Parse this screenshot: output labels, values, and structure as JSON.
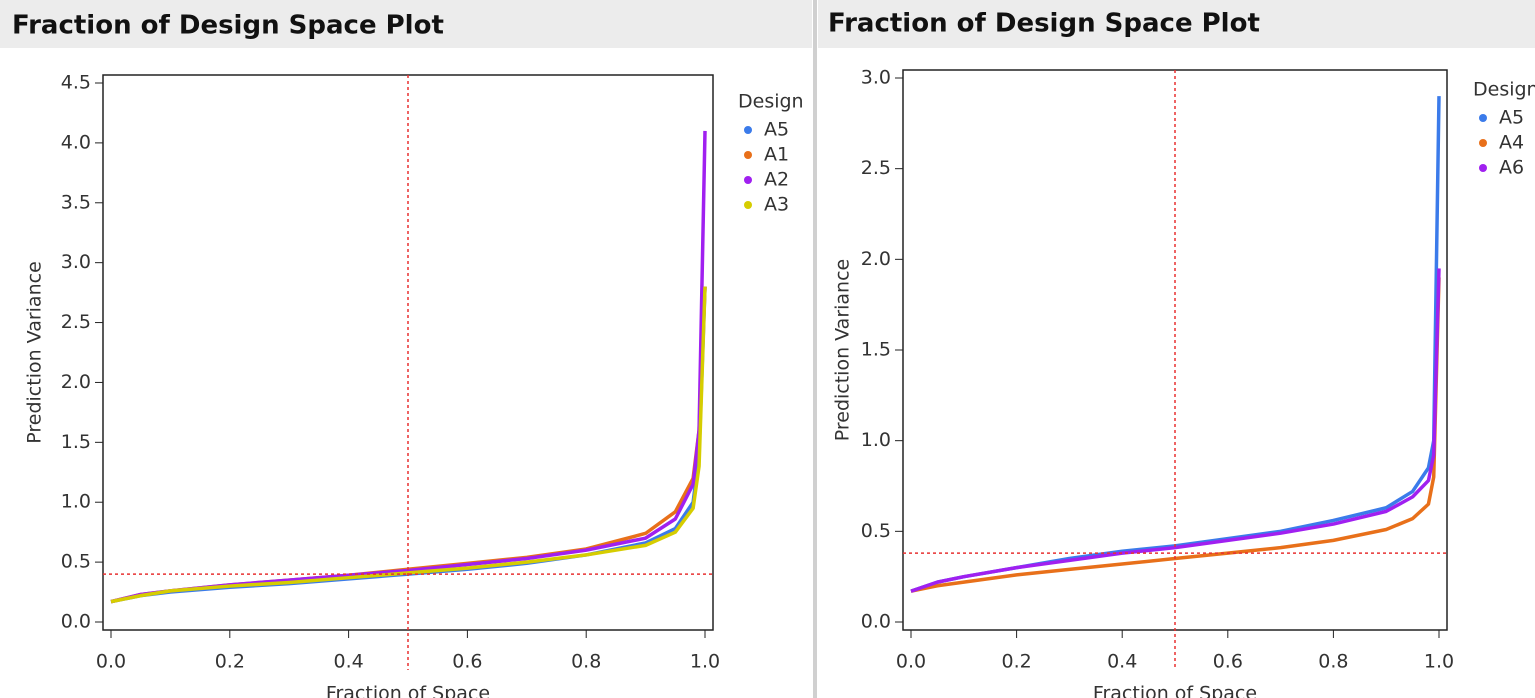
{
  "chart_data": [
    {
      "type": "line",
      "title": "Fraction of Design Space Plot",
      "x_label": "Fraction of Space",
      "y_label": "Prediction Variance",
      "legend_title": "Design",
      "legend": "right",
      "x": [
        0,
        0.05,
        0.1,
        0.2,
        0.3,
        0.4,
        0.5,
        0.6,
        0.7,
        0.8,
        0.9,
        0.95,
        0.98,
        0.99,
        1.0
      ],
      "series": [
        {
          "name": "A5",
          "color": "#3b7bea",
          "values": [
            0.17,
            0.22,
            0.25,
            0.29,
            0.32,
            0.36,
            0.4,
            0.44,
            0.49,
            0.56,
            0.66,
            0.78,
            1.0,
            1.4,
            2.8
          ]
        },
        {
          "name": "A1",
          "color": "#e8701a",
          "values": [
            0.17,
            0.23,
            0.26,
            0.31,
            0.35,
            0.39,
            0.44,
            0.49,
            0.54,
            0.61,
            0.74,
            0.92,
            1.2,
            1.6,
            2.8
          ]
        },
        {
          "name": "A2",
          "color": "#a020f0",
          "values": [
            0.17,
            0.23,
            0.26,
            0.31,
            0.35,
            0.39,
            0.43,
            0.48,
            0.53,
            0.6,
            0.7,
            0.86,
            1.15,
            1.6,
            4.1
          ]
        },
        {
          "name": "A3",
          "color": "#d6cd00",
          "values": [
            0.17,
            0.22,
            0.26,
            0.3,
            0.33,
            0.37,
            0.41,
            0.45,
            0.5,
            0.56,
            0.64,
            0.75,
            0.95,
            1.3,
            2.8
          ]
        }
      ],
      "xlim": [
        0,
        1
      ],
      "ylim": [
        0,
        4.5
      ],
      "xticks": [
        {
          "value": 0,
          "label": "0.0"
        },
        0.2,
        0.4,
        0.6,
        0.8,
        {
          "value": 1,
          "label": "1.0"
        }
      ],
      "yticks": [
        {
          "value": 0,
          "label": "0.0"
        },
        0.5,
        {
          "value": 1,
          "label": "1.0"
        },
        1.5,
        {
          "value": 2,
          "label": "2.0"
        },
        2.5,
        {
          "value": 3,
          "label": "3.0"
        },
        3.5,
        {
          "value": 4,
          "label": "4.0"
        },
        4.5
      ],
      "reference_lines": {
        "x": 0.5,
        "y": 0.4,
        "color": "#e83030"
      }
    },
    {
      "type": "line",
      "title": "Fraction of Design Space Plot",
      "x_label": "Fraction of Space",
      "y_label": "Prediction Variance",
      "legend_title": "Design",
      "legend": "right",
      "x": [
        0,
        0.05,
        0.1,
        0.2,
        0.3,
        0.4,
        0.5,
        0.6,
        0.7,
        0.8,
        0.9,
        0.95,
        0.98,
        0.99,
        1.0
      ],
      "series": [
        {
          "name": "A5",
          "color": "#3b7bea",
          "values": [
            0.17,
            0.22,
            0.25,
            0.3,
            0.35,
            0.39,
            0.42,
            0.46,
            0.5,
            0.56,
            0.63,
            0.72,
            0.85,
            1.0,
            2.9
          ]
        },
        {
          "name": "A4",
          "color": "#e8701a",
          "values": [
            0.17,
            0.2,
            0.22,
            0.26,
            0.29,
            0.32,
            0.35,
            0.38,
            0.41,
            0.45,
            0.51,
            0.57,
            0.65,
            0.8,
            1.9
          ]
        },
        {
          "name": "A6",
          "color": "#a020f0",
          "values": [
            0.17,
            0.22,
            0.25,
            0.3,
            0.34,
            0.38,
            0.41,
            0.45,
            0.49,
            0.54,
            0.61,
            0.69,
            0.78,
            0.92,
            1.95
          ]
        }
      ],
      "xlim": [
        0,
        1
      ],
      "ylim": [
        0,
        3
      ],
      "xticks": [
        {
          "value": 0,
          "label": "0.0"
        },
        0.2,
        0.4,
        0.6,
        0.8,
        {
          "value": 1,
          "label": "1.0"
        }
      ],
      "yticks": [
        {
          "value": 0,
          "label": "0.0"
        },
        0.5,
        {
          "value": 1,
          "label": "1.0"
        },
        1.5,
        {
          "value": 2,
          "label": "2.0"
        },
        2.5,
        {
          "value": 3,
          "label": "3.0"
        }
      ],
      "reference_lines": {
        "x": 0.5,
        "y": 0.38,
        "color": "#e83030"
      }
    }
  ]
}
